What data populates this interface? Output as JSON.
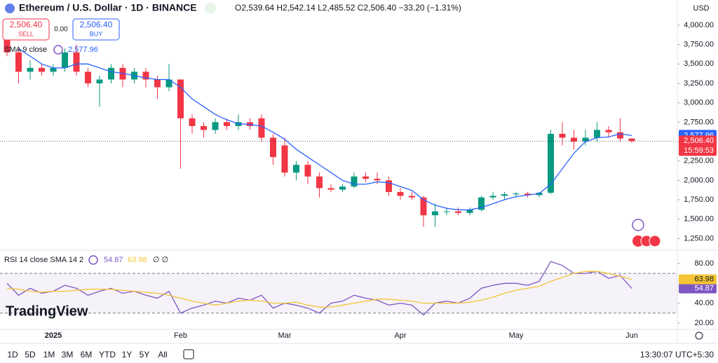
{
  "header": {
    "title": "Ethereum / U.S. Dollar · 1D · BINANCE",
    "ohlc": "O2,539.64 H2,542.14 L2,485.52 C2,506.40 −33.20 (−1.31%)",
    "currency": "USD"
  },
  "trade": {
    "sell_price": "2,506.40",
    "sell": "SELL",
    "spread": "0.00",
    "buy_price": "2,506.40",
    "buy": "BUY"
  },
  "logo": "TradingView",
  "toolbar": {
    "ranges": [
      "1D",
      "5D",
      "1M",
      "3M",
      "6M",
      "YTD",
      "1Y",
      "5Y",
      "All"
    ],
    "clock": "13:30:07 UTC+5:30"
  },
  "chart_data": [
    {
      "type": "candlestick",
      "categories": [
        null,
        null,
        null,
        null,
        "2025",
        null,
        null,
        null,
        null,
        null,
        null,
        null,
        null,
        null,
        null,
        "Feb",
        null,
        null,
        null,
        null,
        null,
        null,
        null,
        null,
        "Mar",
        null,
        null,
        null,
        null,
        null,
        null,
        null,
        null,
        null,
        "Apr",
        null,
        null,
        null,
        null,
        null,
        null,
        null,
        null,
        null,
        "May",
        null,
        null,
        null,
        null,
        null,
        null,
        null,
        null,
        null,
        "Jun"
      ],
      "open": [
        3950,
        3650,
        3400,
        3450,
        3400,
        3450,
        3650,
        3400,
        3250,
        3300,
        3450,
        3300,
        3400,
        3300,
        3200,
        3300,
        2800,
        2700,
        2650,
        2750,
        2700,
        2750,
        2800,
        2550,
        2450,
        2100,
        2200,
        2050,
        1900,
        1880,
        1920,
        2050,
        2020,
        2000,
        1850,
        1800,
        1780,
        1550,
        1600,
        1600,
        1580,
        1620,
        1780,
        1800,
        1820,
        1830,
        1810,
        1840,
        2600,
        2550,
        2500,
        2550,
        2650,
        2620,
        2539.64
      ],
      "high": [
        4000,
        3700,
        3550,
        3500,
        3500,
        3700,
        3750,
        3450,
        3350,
        3500,
        3500,
        3450,
        3450,
        3350,
        3500,
        3300,
        2850,
        2750,
        2800,
        2800,
        2850,
        2800,
        2850,
        2600,
        2550,
        2250,
        2250,
        2100,
        1950,
        1950,
        2100,
        2100,
        2100,
        2050,
        1900,
        1850,
        1800,
        1700,
        1650,
        1650,
        1650,
        1800,
        1850,
        1850,
        1850,
        1850,
        1850,
        2650,
        2750,
        2650,
        2650,
        2750,
        2700,
        2800,
        2542.14
      ],
      "low": [
        3600,
        3250,
        3300,
        3350,
        3350,
        3400,
        3350,
        3200,
        2950,
        3250,
        3200,
        3250,
        3200,
        3050,
        3150,
        2150,
        2600,
        2550,
        2600,
        2650,
        2650,
        2650,
        2500,
        2200,
        2050,
        2000,
        1950,
        1780,
        1850,
        1850,
        1900,
        1980,
        1950,
        1800,
        1750,
        1750,
        1400,
        1400,
        1550,
        1550,
        1550,
        1600,
        1750,
        1750,
        1780,
        1780,
        1780,
        1820,
        2450,
        2400,
        2450,
        2500,
        2550,
        2500,
        2485.52
      ],
      "close": [
        3650,
        3400,
        3450,
        3400,
        3450,
        3650,
        3400,
        3250,
        3300,
        3450,
        3300,
        3400,
        3300,
        3200,
        3300,
        2800,
        2700,
        2650,
        2750,
        2700,
        2750,
        2700,
        2550,
        2300,
        2100,
        2200,
        2050,
        1900,
        1880,
        1920,
        2050,
        2020,
        2000,
        1850,
        1800,
        1780,
        1550,
        1600,
        1600,
        1580,
        1620,
        1780,
        1800,
        1820,
        1830,
        1810,
        1840,
        2600,
        2550,
        2500,
        2550,
        2650,
        2620,
        2539.6,
        2506.4
      ],
      "close_label": "2,506.40",
      "countdown": "15:59:53",
      "up_color": "#089981",
      "down_color": "#f23645",
      "ylim": [
        1100,
        4325
      ],
      "yticks": [
        {
          "value": 4000,
          "label": "4,000.00"
        },
        {
          "value": 3750,
          "label": "3,750.00"
        },
        {
          "value": 3500,
          "label": "3,500.00"
        },
        {
          "value": 3250,
          "label": "3,250.00"
        },
        {
          "value": 3000,
          "label": "3,000.00"
        },
        {
          "value": 2750,
          "label": "2,750.00"
        },
        {
          "value": 2500,
          "label": "2,500.00"
        },
        {
          "value": 2250,
          "label": "2,250.00"
        },
        {
          "value": 2000,
          "label": "2,000.00"
        },
        {
          "value": 1750,
          "label": "1,750.00"
        },
        {
          "value": 1500,
          "label": "1,500.00"
        },
        {
          "value": 1250,
          "label": "1,250.00"
        }
      ],
      "series": [
        {
          "name": "SMA 9 close",
          "color": "#2962ff",
          "values": [
            null,
            3700,
            3600,
            3500,
            3450,
            3450,
            3500,
            3500,
            3450,
            3400,
            3380,
            3350,
            3320,
            3300,
            3300,
            3200,
            3050,
            2950,
            2850,
            2780,
            2730,
            2720,
            2700,
            2620,
            2530,
            2400,
            2300,
            2200,
            2100,
            2000,
            1950,
            1950,
            1980,
            1970,
            1920,
            1870,
            1750,
            1680,
            1640,
            1620,
            1620,
            1650,
            1700,
            1750,
            1790,
            1810,
            1830,
            1950,
            2150,
            2350,
            2500,
            2550,
            2560,
            2600,
            2577.96
          ],
          "value_label": "2,577.96"
        }
      ]
    },
    {
      "type": "line",
      "title": "RSI 14 close SMA 14 2",
      "suffix": "∅ ∅",
      "ylim": [
        13.6,
        92.7
      ],
      "yticks": [
        {
          "value": 80,
          "label": "80.00"
        },
        {
          "value": 40,
          "label": "40.00"
        },
        {
          "value": 20,
          "label": "20.00"
        }
      ],
      "band": [
        30,
        70
      ],
      "band_color": "#7e57c2",
      "series": [
        {
          "color": "#7e57c2",
          "values": [
            60,
            48,
            55,
            50,
            52,
            58,
            55,
            48,
            52,
            55,
            50,
            52,
            48,
            45,
            52,
            30,
            35,
            38,
            42,
            40,
            45,
            43,
            48,
            35,
            40,
            38,
            35,
            30,
            40,
            42,
            48,
            45,
            43,
            38,
            40,
            38,
            28,
            40,
            42,
            40,
            45,
            55,
            58,
            60,
            60,
            58,
            62,
            82,
            78,
            70,
            70,
            72,
            65,
            68,
            54.87
          ],
          "value_label": "54.87"
        },
        {
          "color": "#f4c534",
          "values": [
            55,
            54,
            52,
            51,
            52,
            52,
            53,
            54,
            54,
            54,
            53,
            52,
            51,
            50,
            48,
            45,
            42,
            40,
            38,
            40,
            42,
            43,
            42,
            40,
            40,
            41,
            38,
            36,
            36,
            38,
            40,
            42,
            44,
            44,
            43,
            42,
            40,
            40,
            40,
            40,
            41,
            43,
            46,
            50,
            53,
            55,
            57,
            62,
            66,
            70,
            72,
            72,
            70,
            67,
            63.98
          ],
          "value_label": "63.98"
        }
      ]
    }
  ]
}
